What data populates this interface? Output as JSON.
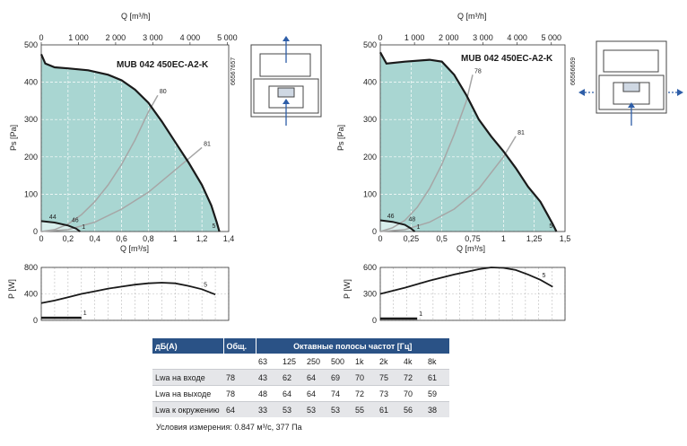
{
  "colors": {
    "fill": "#a9d6d2",
    "fill_light": "#d8eeec",
    "curve": "#1a1a1a",
    "efficiency_line": "#a6a6a6",
    "table_header": "#2a5286",
    "arrow": "#2e5ea8"
  },
  "chart_data": [
    {
      "type": "line",
      "name": "left-pressure",
      "title": "MUB 042 450EC-A2-K",
      "code": "66567657",
      "xlabel": "Q [m³/s]",
      "x2label": "Q [m³/h]",
      "ylabel": "Ps [Pa]",
      "xlim": [
        0,
        1.4
      ],
      "ylim": [
        0,
        500
      ],
      "x_ticks": [
        "0",
        "0,2",
        "0,4",
        "0,6",
        "0,8",
        "1",
        "1,2",
        "1,4"
      ],
      "x2_ticks": [
        "0",
        "1 000",
        "2 000",
        "3 000",
        "4 000",
        "5 000"
      ],
      "y_ticks": [
        "0",
        "100",
        "200",
        "300",
        "400",
        "500"
      ],
      "fan_curve": {
        "x": [
          0,
          0.03,
          0.1,
          0.2,
          0.35,
          0.5,
          0.6,
          0.7,
          0.8,
          0.9,
          1.0,
          1.1,
          1.2,
          1.27,
          1.31,
          1.33
        ],
        "y": [
          475,
          450,
          440,
          437,
          432,
          420,
          405,
          380,
          345,
          295,
          240,
          185,
          125,
          70,
          25,
          0
        ]
      },
      "low_curve": {
        "x": [
          0,
          0.1,
          0.2,
          0.26,
          0.29
        ],
        "y": [
          28,
          24,
          16,
          8,
          0
        ]
      },
      "system_lines": [
        {
          "label": "80",
          "x": [
            0,
            0.1,
            0.2,
            0.3,
            0.4,
            0.5,
            0.6,
            0.7,
            0.8,
            0.87
          ],
          "y": [
            0,
            5,
            20,
            45,
            80,
            125,
            180,
            245,
            320,
            365
          ]
        },
        {
          "label": "81",
          "x": [
            0,
            0.2,
            0.4,
            0.6,
            0.8,
            1.0,
            1.2
          ],
          "y": [
            0,
            5,
            25,
            60,
            105,
            165,
            225
          ]
        }
      ],
      "curve_labels": [
        "44",
        "46",
        "1",
        "5"
      ]
    },
    {
      "type": "line",
      "name": "left-power",
      "ylabel": "P [W]",
      "xlim": [
        0,
        1.4
      ],
      "ylim": [
        0,
        800
      ],
      "y_ticks": [
        "0",
        "400",
        "800"
      ],
      "power_curve": {
        "x": [
          0,
          0.1,
          0.2,
          0.3,
          0.4,
          0.5,
          0.6,
          0.7,
          0.8,
          0.9,
          1.0,
          1.1,
          1.2,
          1.3
        ],
        "y": [
          260,
          300,
          350,
          400,
          440,
          480,
          510,
          540,
          560,
          570,
          560,
          520,
          470,
          390
        ]
      },
      "min_curve": {
        "x": [
          0,
          0.1,
          0.2,
          0.3
        ],
        "y": [
          40,
          40,
          40,
          40
        ]
      },
      "curve_labels": [
        "5",
        "1"
      ]
    },
    {
      "type": "line",
      "name": "right-pressure",
      "title": "MUB 042 450EC-A2-K",
      "code": "66566659",
      "xlabel": "Q [m³/s]",
      "x2label": "Q [m³/h]",
      "ylabel": "Ps [Pa]",
      "xlim": [
        0,
        1.5
      ],
      "ylim": [
        0,
        500
      ],
      "x_ticks": [
        "0",
        "0,25",
        "0,5",
        "0,75",
        "1",
        "1,25",
        "1,5"
      ],
      "x2_ticks": [
        "0",
        "1 000",
        "2 000",
        "3 000",
        "4 000",
        "5 000"
      ],
      "y_ticks": [
        "0",
        "100",
        "200",
        "300",
        "400",
        "500"
      ],
      "fan_curve": {
        "x": [
          0,
          0.05,
          0.2,
          0.4,
          0.5,
          0.6,
          0.7,
          0.8,
          0.9,
          1.0,
          1.1,
          1.2,
          1.3,
          1.35,
          1.4,
          1.43
        ],
        "y": [
          480,
          450,
          455,
          460,
          455,
          420,
          365,
          300,
          255,
          215,
          170,
          120,
          80,
          50,
          20,
          0
        ]
      },
      "low_curve": {
        "x": [
          0,
          0.1,
          0.2,
          0.25,
          0.28
        ],
        "y": [
          30,
          26,
          18,
          8,
          0
        ]
      },
      "system_lines": [
        {
          "label": "78",
          "x": [
            0,
            0.1,
            0.2,
            0.3,
            0.4,
            0.5,
            0.6,
            0.7,
            0.75
          ],
          "y": [
            0,
            10,
            30,
            65,
            115,
            180,
            260,
            350,
            420
          ]
        },
        {
          "label": "81",
          "x": [
            0,
            0.2,
            0.4,
            0.6,
            0.8,
            1.0,
            1.1
          ],
          "y": [
            0,
            5,
            25,
            60,
            115,
            200,
            255
          ]
        }
      ],
      "curve_labels": [
        "46",
        "48",
        "1",
        "5"
      ]
    },
    {
      "type": "line",
      "name": "right-power",
      "ylabel": "P [W]",
      "xlim": [
        0,
        1.5
      ],
      "ylim": [
        0,
        600
      ],
      "y_ticks": [
        "0",
        "300",
        "600"
      ],
      "power_curve": {
        "x": [
          0,
          0.2,
          0.4,
          0.6,
          0.8,
          0.9,
          1.0,
          1.1,
          1.2,
          1.3,
          1.4
        ],
        "y": [
          300,
          370,
          450,
          520,
          580,
          600,
          595,
          570,
          520,
          460,
          380
        ]
      },
      "min_curve": {
        "x": [
          0,
          0.1,
          0.2,
          0.3
        ],
        "y": [
          20,
          20,
          20,
          20
        ]
      },
      "curve_labels": [
        "5",
        "1"
      ]
    },
    {
      "type": "table",
      "name": "sound-table",
      "header": {
        "col0": "дБ(А)",
        "col1": "Общ.",
        "col2": "Октавные полосы частот [Гц]"
      },
      "bands": [
        "63",
        "125",
        "250",
        "500",
        "1k",
        "2k",
        "4k",
        "8k"
      ],
      "rows": [
        {
          "label": "Lwa на входе",
          "total": "78",
          "values": [
            "43",
            "62",
            "64",
            "69",
            "70",
            "75",
            "72",
            "61"
          ]
        },
        {
          "label": "Lwa на выходе",
          "total": "78",
          "values": [
            "48",
            "64",
            "64",
            "74",
            "72",
            "73",
            "70",
            "59"
          ]
        },
        {
          "label": "Lwa к окружению",
          "total": "64",
          "values": [
            "33",
            "53",
            "53",
            "53",
            "55",
            "61",
            "56",
            "38"
          ]
        }
      ]
    }
  ],
  "conditions_text": "Условия измерения: 0.847 м³/с, 377 Па"
}
